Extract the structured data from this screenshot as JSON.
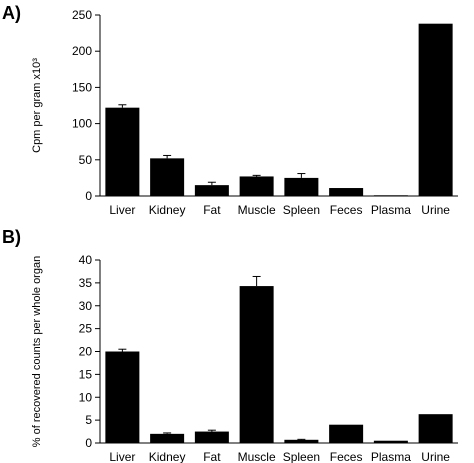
{
  "chart_data": [
    {
      "type": "bar",
      "panel": "A)",
      "title": "",
      "xlabel": "",
      "ylabel": "Cpm per gram x10³",
      "ylim": [
        0,
        250
      ],
      "yticks": [
        "0",
        "50",
        "100",
        "150",
        "200",
        "250"
      ],
      "categories": [
        "Liver",
        "Kidney",
        "Fat",
        "Muscle",
        "Spleen",
        "Feces",
        "Plasma",
        "Urine"
      ],
      "values": [
        122,
        52,
        15,
        27,
        25,
        11,
        1,
        238
      ],
      "errors": [
        4,
        4,
        4,
        1.5,
        6,
        0,
        0,
        0
      ],
      "grid": false,
      "color": "#000000"
    },
    {
      "type": "bar",
      "panel": "B)",
      "title": "",
      "xlabel": "",
      "ylabel": "% of recovered counts per whole organ",
      "ylim": [
        0,
        40
      ],
      "yticks": [
        "0",
        "5",
        "10",
        "15",
        "20",
        "25",
        "30",
        "35",
        "40"
      ],
      "categories": [
        "Liver",
        "Kidney",
        "Fat",
        "Muscle",
        "Spleen",
        "Feces",
        "Plasma",
        "Urine"
      ],
      "values": [
        20,
        2,
        2.5,
        34.3,
        0.7,
        4,
        0.5,
        6.3
      ],
      "errors": [
        0.5,
        0.2,
        0.3,
        2.1,
        0.1,
        0,
        0,
        0
      ],
      "grid": false,
      "color": "#000000"
    }
  ]
}
